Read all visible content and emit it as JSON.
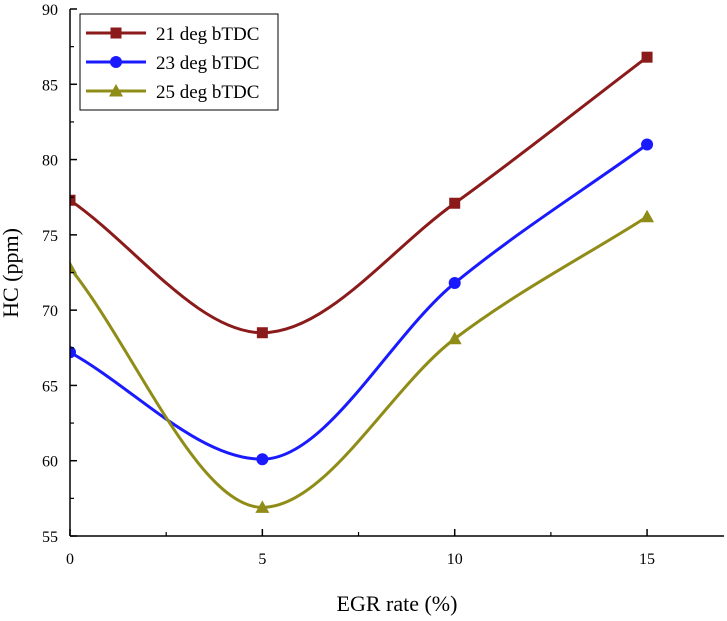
{
  "colors": {
    "series_21": "#8b1a1a",
    "series_23": "#1a1aff",
    "series_25": "#8f8c17",
    "axis": "#000000"
  },
  "chart_data": {
    "type": "line",
    "title": "",
    "xlabel": "EGR rate (%)",
    "ylabel": "HC (ppm)",
    "xlim": [
      0,
      17
    ],
    "ylim": [
      55,
      90
    ],
    "xticks": [
      0,
      5,
      10,
      15
    ],
    "yticks": [
      55,
      60,
      65,
      70,
      75,
      80,
      85,
      90
    ],
    "x": [
      0,
      5,
      10,
      15
    ],
    "legend_position": "top-left",
    "grid": false,
    "series": [
      {
        "name": "21 deg bTDC",
        "marker": "square",
        "values": [
          77.3,
          68.5,
          77.1,
          86.8
        ]
      },
      {
        "name": "23 deg bTDC",
        "marker": "circle",
        "values": [
          67.2,
          60.1,
          71.8,
          81.0
        ]
      },
      {
        "name": "25 deg bTDC",
        "marker": "triangle",
        "values": [
          72.8,
          56.9,
          68.1,
          76.2
        ]
      }
    ]
  }
}
